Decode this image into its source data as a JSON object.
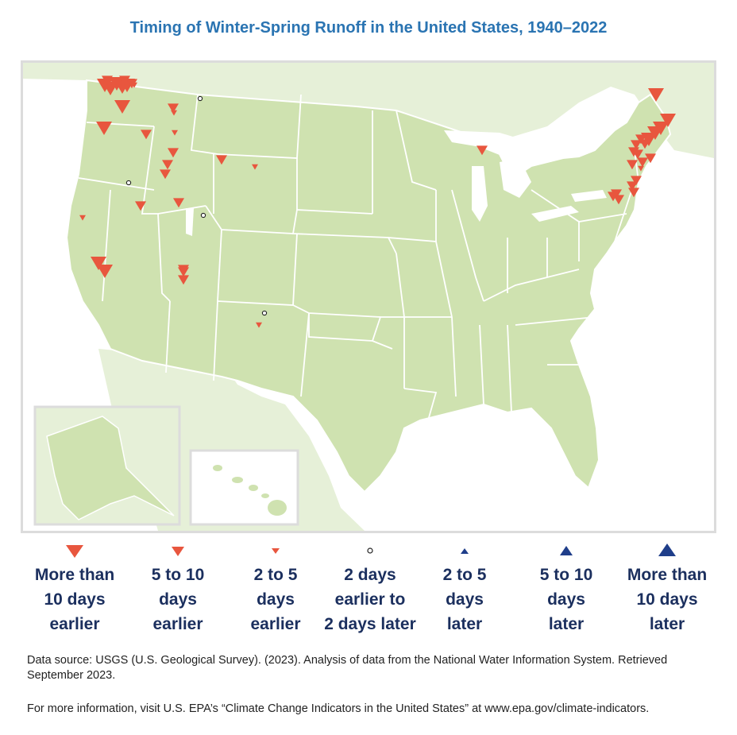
{
  "title": "Timing of Winter-Spring Runoff in the United States, 1940–2022",
  "colors": {
    "earlier": "#e8563e",
    "later": "#1f3e8a",
    "no_change_fill": "#ffffff",
    "no_change_stroke": "#222222",
    "land_us": "#cfe2b0",
    "land_other": "#e6f0d8",
    "water": "#ffffff",
    "border": "#ffffff",
    "legend_text": "#1b2f5e",
    "title": "#2a74b2"
  },
  "legend": [
    {
      "label_lines": [
        "More than",
        "10 days",
        "earlier"
      ],
      "symbol": "down-triangle-large-icon",
      "color": "#e8563e"
    },
    {
      "label_lines": [
        "5 to 10",
        "days",
        "earlier"
      ],
      "symbol": "down-triangle-medium-icon",
      "color": "#e8563e"
    },
    {
      "label_lines": [
        "2 to 5",
        "days",
        "earlier"
      ],
      "symbol": "down-triangle-small-icon",
      "color": "#e8563e"
    },
    {
      "label_lines": [
        "2 days",
        "earlier to",
        "2 days later"
      ],
      "symbol": "open-circle-icon",
      "color": "#222222"
    },
    {
      "label_lines": [
        "2 to 5",
        "days",
        "later"
      ],
      "symbol": "up-triangle-small-icon",
      "color": "#1f3e8a"
    },
    {
      "label_lines": [
        "5 to 10",
        "days",
        "later"
      ],
      "symbol": "up-triangle-medium-icon",
      "color": "#1f3e8a"
    },
    {
      "label_lines": [
        "More than",
        "10 days",
        "later"
      ],
      "symbol": "up-triangle-large-icon",
      "color": "#1f3e8a"
    }
  ],
  "source": "Data source: USGS (U.S. Geological Survey). (2023). Analysis of data from the National Water Information System. Retrieved September 2023.",
  "more_info": "For more information, visit U.S. EPA’s “Climate Change Indicators in the United States” at www.epa.gov/climate-indicators."
}
